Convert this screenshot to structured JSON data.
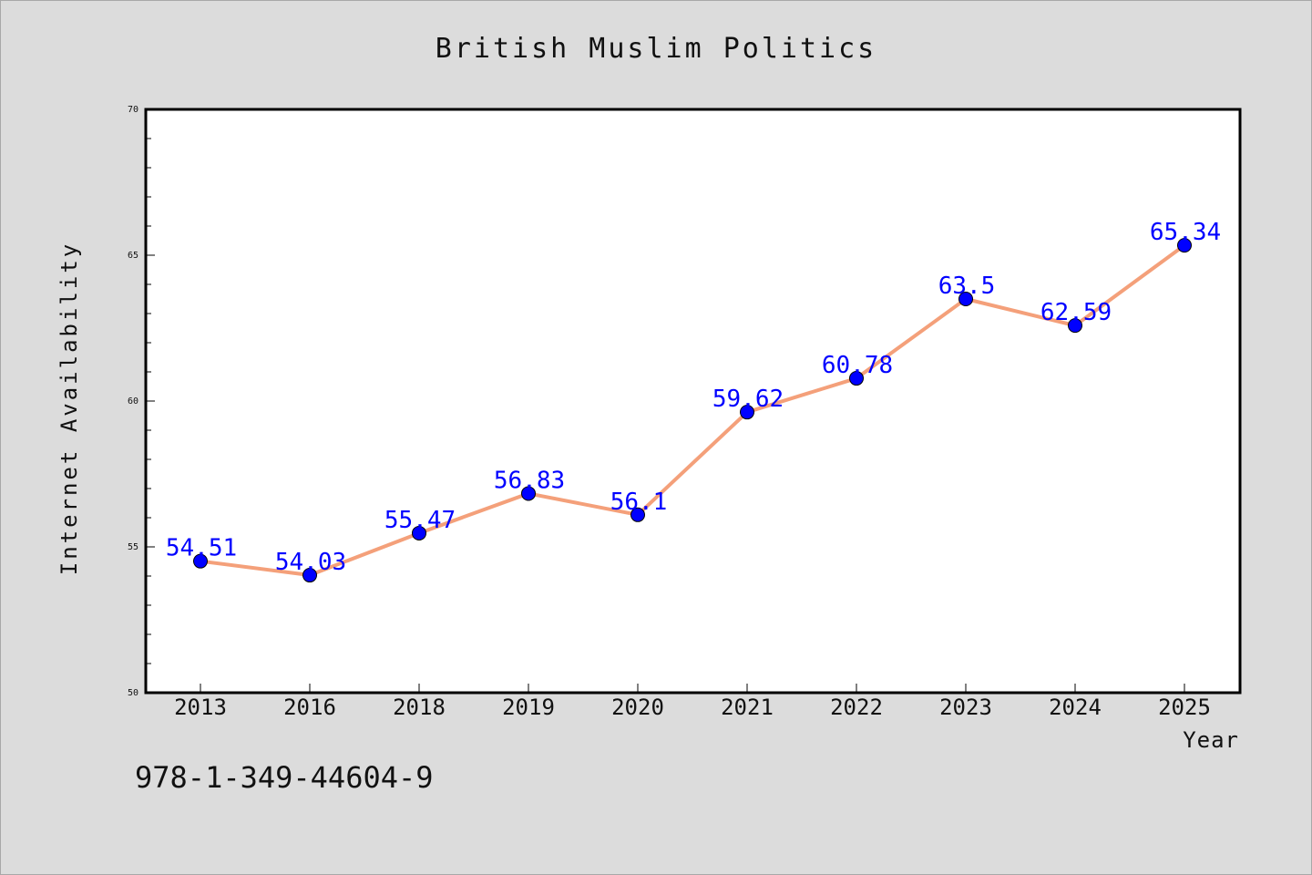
{
  "chart_data": {
    "type": "line",
    "title": "British Muslim Politics",
    "xlabel": "Year",
    "ylabel": "Internet Availability",
    "categories": [
      "2013",
      "2016",
      "2018",
      "2019",
      "2020",
      "2021",
      "2022",
      "2023",
      "2024",
      "2025"
    ],
    "series": [
      {
        "values": [
          54.51,
          54.03,
          55.47,
          56.83,
          56.1,
          59.62,
          60.78,
          63.5,
          62.59,
          65.34
        ],
        "data_labels": [
          "54.51",
          "54.03",
          "55.47",
          "56.83",
          "56.1",
          "59.62",
          "60.78",
          "63.5",
          "62.59",
          "65.34"
        ],
        "line_color": "#f4a07a",
        "marker_color": "#0000ff"
      }
    ],
    "ylim": [
      50,
      70
    ],
    "yticks": [
      "50",
      "55",
      "60",
      "65",
      "70"
    ],
    "grid": false,
    "legend": "none"
  },
  "footnote": "978-1-349-44604-9",
  "colors": {
    "background": "#dcdcdc",
    "plot_background": "#ffffff",
    "line": "#f4a07a",
    "marker": "#0000ff",
    "data_label": "#0000ff"
  }
}
